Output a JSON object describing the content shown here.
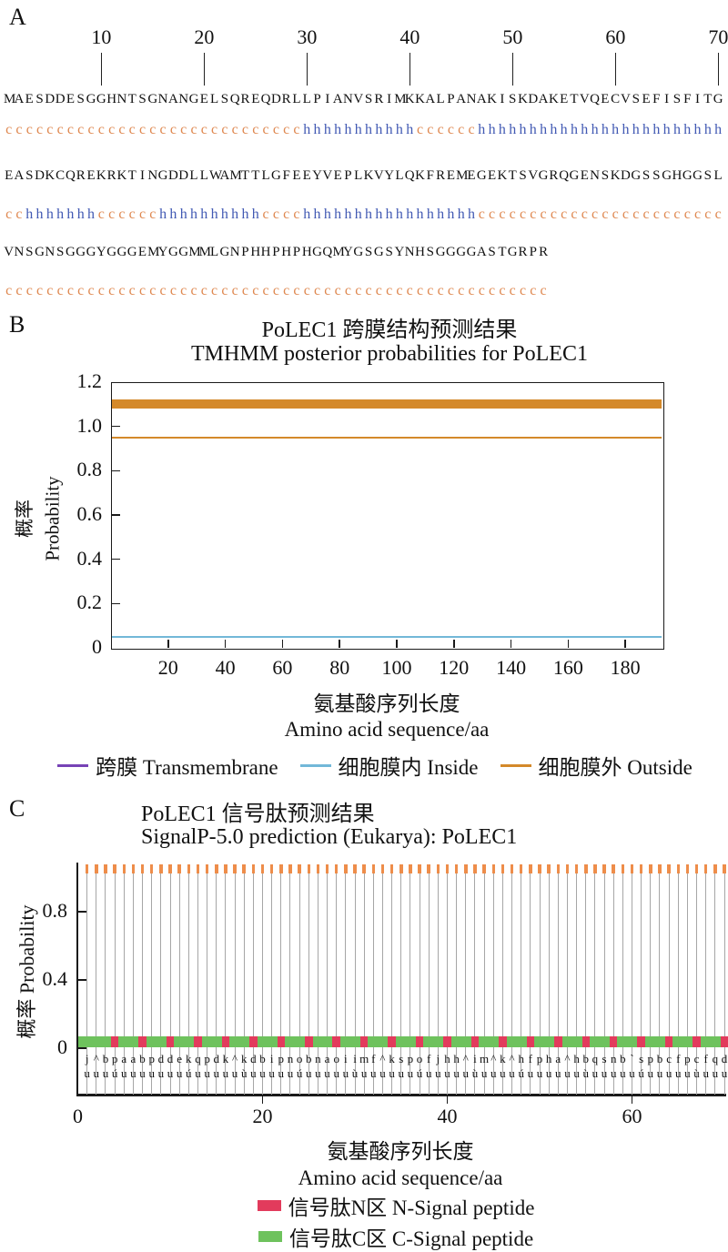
{
  "panelA": {
    "label": "A",
    "ruler": [
      10,
      20,
      30,
      40,
      50,
      60,
      70
    ],
    "rows": [
      {
        "seq": "MAESDDESGGHNTSGNANGELSQREQDRLLPIANVSRIMKKALPANAKISKDAKETVQECVSEFISFITG",
        "ss": "ccccccccccccccccccccccccccccchhhhhhhhhhhcccccchhhhhhhhhhhhhhhhhhhhhhhh"
      },
      {
        "seq": "EASDKCQREKRKTINGDDLLWAMTTLGFEEYVEPLKVYLQKFREMEGEKTSVGRQGENSKDGSSGHGGSL",
        "ss": "cchhhhhhhcccccchhhhhhhhhhcccchhhhhhhhhhhhhhhhhcccccccccccccccccccccccc"
      },
      {
        "seq": "VNSGNSGGGYGGGEMYGGMMLGNPHHPHPHGQMYGSGSYNHSGGGGASTGRPR",
        "ss": "ccccccccccccccccccccccccccccccccccccccccccccccccccccc"
      }
    ]
  },
  "panelB": {
    "label": "B",
    "title_zh": "PoLEC1 跨膜结构预测结果",
    "title_en": "TMHMM posterior probabilities for PoLEC1",
    "ylabel_zh": "概率",
    "ylabel_en": "Probability",
    "xlabel_zh": "氨基酸序列长度",
    "xlabel_en": "Amino acid sequence/aa",
    "yticks": [
      "0",
      "0.2",
      "0.4",
      "0.6",
      "0.8",
      "1.0",
      "1.2"
    ],
    "xticks": [
      20,
      40,
      60,
      80,
      100,
      120,
      140,
      160,
      180
    ],
    "xmax": 193,
    "series": {
      "outside_band_top": 1.12,
      "outside_band_bottom": 1.08,
      "outside_line": 0.95,
      "inside_line": 0.05,
      "transmembrane_line": 0.0
    },
    "legend": [
      {
        "label": "跨膜 Transmembrane",
        "color": "#7743b6"
      },
      {
        "label": "细胞膜内 Inside",
        "color": "#72b8d8"
      },
      {
        "label": "细胞膜外 Outside",
        "color": "#d4892a"
      }
    ]
  },
  "panelC": {
    "label": "C",
    "title_zh": "PoLEC1 信号肽预测结果",
    "title_en": "SignalP-5.0 prediction (Eukarya):  PoLEC1",
    "ylabel": "概率 Probability",
    "xlabel_zh": "氨基酸序列长度",
    "xlabel_en": "Amino acid sequence/aa",
    "yticks": [
      "0",
      "0.4",
      "0.8"
    ],
    "xticks": [
      0,
      20,
      40,
      60
    ],
    "n_positions": 70,
    "marker_value": 1.05,
    "c_band_value": 0.05,
    "letters_row1": "j^bpaabpddekqpdk^kdbipnobnaoiimf^kspofjhh^im^k^hfpha^hbqsnb`spbcfpcfqd",
    "letters_row2": "uuuúuuuuuuuúuuuuuùuuuuuúuuuuuùuuuuuuúuuuuuùuuuuúuuuuuuùuuuuuúuuuuuùuuu",
    "red_positions": [
      4,
      7,
      10,
      13,
      16,
      19,
      22,
      25,
      28,
      31,
      34,
      37,
      40,
      43,
      46,
      49,
      52,
      55,
      58,
      61,
      64,
      67,
      70
    ],
    "legend": [
      {
        "label": "信号肽N区 N-Signal peptide",
        "color": "#e23b5c"
      },
      {
        "label": "信号肽C区 C-Signal peptide",
        "color": "#6ec25d"
      }
    ]
  },
  "colors": {
    "ss_coil": "#df8850",
    "ss_helix": "#4159b3",
    "axis": "#1a1a1a",
    "gray_line": "#a6a6a6",
    "dash_orange": "#ee8d4a"
  },
  "chart_data": [
    {
      "type": "line",
      "title": "PoLEC1 跨膜结构预测结果 / TMHMM posterior probabilities for PoLEC1",
      "xlabel": "氨基酸序列长度 Amino acid sequence/aa",
      "ylabel": "概率 Probability",
      "xlim": [
        1,
        193
      ],
      "ylim": [
        0,
        1.2
      ],
      "xticks": [
        20,
        40,
        60,
        80,
        100,
        120,
        140,
        160,
        180
      ],
      "yticks": [
        0,
        0.2,
        0.4,
        0.6,
        0.8,
        1.0,
        1.2
      ],
      "grid": false,
      "legend_position": "below",
      "series": [
        {
          "name": "跨膜 Transmembrane",
          "constant_value": 0.0,
          "note": "not visible, flat at 0"
        },
        {
          "name": "细胞膜内 Inside",
          "constant_value": 0.05
        },
        {
          "name": "细胞膜外 Outside",
          "constant_value": 0.95
        },
        {
          "name": "outside-topology-band",
          "constant_value": 1.1,
          "note": "thick bar spanning positions 1-193"
        }
      ]
    },
    {
      "type": "line",
      "title": "PoLEC1 信号肽预测结果 / SignalP-5.0 prediction (Eukarya): PoLEC1",
      "xlabel": "氨基酸序列长度 Amino acid sequence/aa",
      "ylabel": "概率 Probability",
      "xlim": [
        0,
        70
      ],
      "ylim": [
        0,
        1.05
      ],
      "xticks": [
        0,
        20,
        40,
        60
      ],
      "yticks": [
        0,
        0.4,
        0.8
      ],
      "grid": false,
      "legend_position": "below",
      "series": [
        {
          "name": "OTHER per-position markers",
          "constant_value": 1.03,
          "positions": "1-70, one vertical marker per residue"
        },
        {
          "name": "信号肽C区 C-Signal peptide",
          "constant_value": 0.05,
          "positions": "1-70 continuous band"
        },
        {
          "name": "信号肽N区 N-Signal peptide",
          "value": 0.05,
          "positions": [
            4,
            7,
            10,
            13,
            16,
            19,
            22,
            25,
            28,
            31,
            34,
            37,
            40,
            43,
            46,
            49,
            52,
            55,
            58,
            61,
            64,
            67,
            70
          ]
        }
      ]
    }
  ]
}
